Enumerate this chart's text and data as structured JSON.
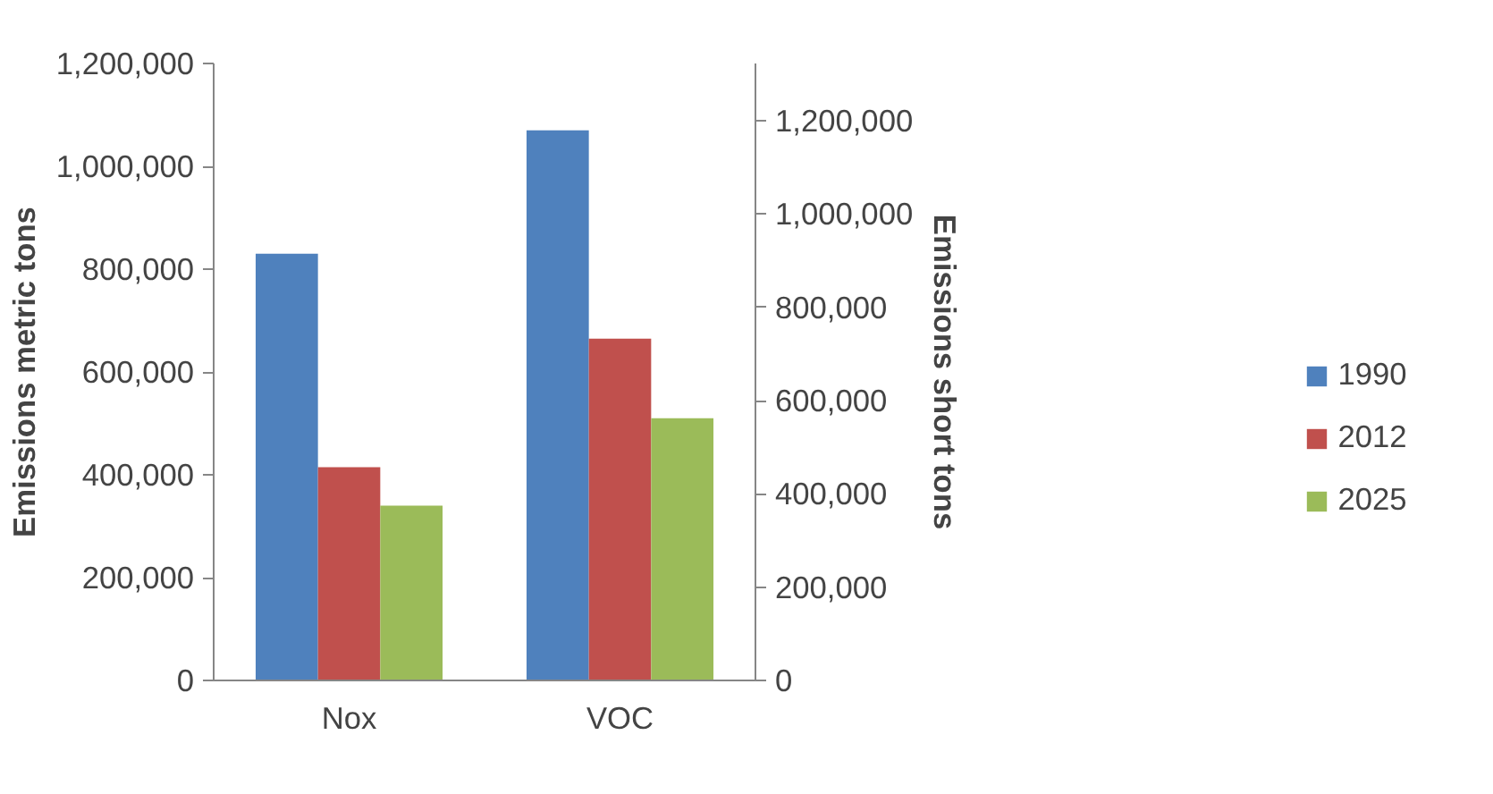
{
  "chart_data": {
    "type": "bar",
    "categories": [
      "Nox",
      "VOC"
    ],
    "series": [
      {
        "name": "1990",
        "color": "#4f81bd",
        "values": [
          830000,
          1070000
        ]
      },
      {
        "name": "2012",
        "color": "#c0504d",
        "values": [
          415000,
          665000
        ]
      },
      {
        "name": "2025",
        "color": "#9bbb59",
        "values": [
          340000,
          510000
        ]
      }
    ],
    "ylabel": "Emissions metric tons",
    "y2label": "Emissions short tons",
    "ylim": [
      0,
      1200000
    ],
    "yticks": [
      {
        "value": 0,
        "label": "0"
      },
      {
        "value": 200000,
        "label": "200,000"
      },
      {
        "value": 400000,
        "label": "400,000"
      },
      {
        "value": 600000,
        "label": "600,000"
      },
      {
        "value": 800000,
        "label": "800,000"
      },
      {
        "value": 1000000,
        "label": "1,000,000"
      },
      {
        "value": 1200000,
        "label": "1,200,000"
      }
    ],
    "y2lim": [
      0,
      1322800
    ],
    "y2ticks": [
      {
        "value": 0,
        "label": "0"
      },
      {
        "value": 200000,
        "label": "200,000"
      },
      {
        "value": 400000,
        "label": "400,000"
      },
      {
        "value": 600000,
        "label": "600,000"
      },
      {
        "value": 800000,
        "label": "800,000"
      },
      {
        "value": 1000000,
        "label": "1,000,000"
      },
      {
        "value": 1200000,
        "label": "1,200,000"
      }
    ],
    "legend": "right",
    "grid": false
  }
}
